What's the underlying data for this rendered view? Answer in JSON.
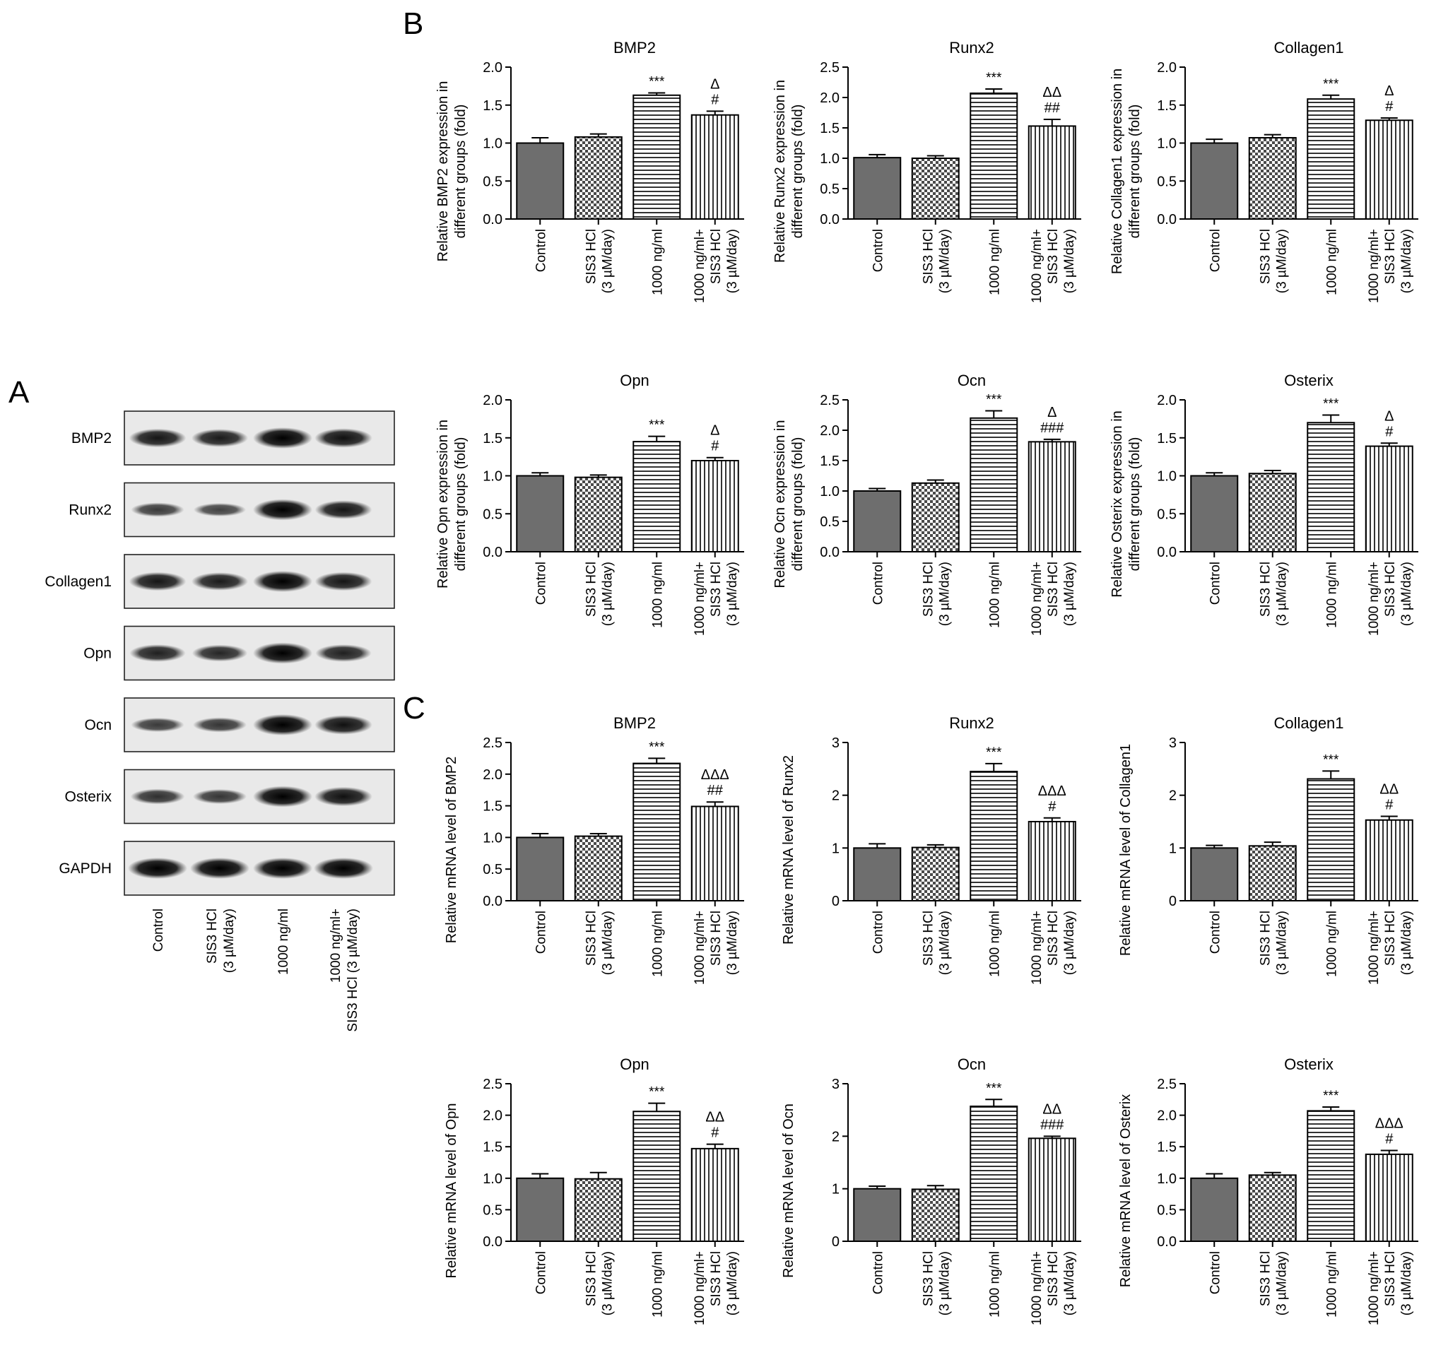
{
  "figure": {
    "panels": {
      "a": "A",
      "b": "B",
      "c": "C"
    },
    "categories": [
      "Control",
      "SIS3 HCl\n(3 µM/day)",
      "1000 ng/ml",
      "1000 ng/ml+\nSIS3 HCl\n(3 µM/day)"
    ],
    "western_blot": {
      "rows": [
        "BMP2",
        "Runx2",
        "Collagen1",
        "Opn",
        "Ocn",
        "Osterix",
        "GAPDH"
      ],
      "lanes": [
        "Control",
        "SIS3 HCl\n(3 µM/day)",
        "1000 ng/ml",
        "1000 ng/ml+\nSIS3 HCl (3 µM/day)"
      ],
      "band_intensity": [
        [
          0.8,
          0.75,
          1.0,
          0.85
        ],
        [
          0.45,
          0.38,
          1.0,
          0.8
        ],
        [
          0.8,
          0.75,
          1.0,
          0.8
        ],
        [
          0.7,
          0.65,
          1.0,
          0.7
        ],
        [
          0.45,
          0.5,
          1.0,
          0.85
        ],
        [
          0.55,
          0.5,
          1.0,
          0.85
        ],
        [
          1.0,
          1.0,
          1.0,
          1.0
        ]
      ]
    },
    "colors": {
      "bar_control": "#6e6e6e",
      "axis": "#000000"
    }
  },
  "chart_data": [
    {
      "type": "bar",
      "panel": "B",
      "title": "BMP2",
      "ylabel": "Relative BMP2 expression in\ndifferent groups (fold)",
      "ylim": [
        0,
        2.0
      ],
      "yticks": [
        "0.0",
        "0.5",
        "1.0",
        "1.5",
        "2.0"
      ],
      "categories": [
        "Control",
        "SIS3 HCl (3 µM/day)",
        "1000 ng/ml",
        "1000 ng/ml+ SIS3 HCl (3 µM/day)"
      ],
      "values": [
        1.0,
        1.08,
        1.63,
        1.37
      ],
      "errors": [
        0.07,
        0.04,
        0.03,
        0.05
      ],
      "annotations": [
        "",
        "",
        "***",
        "Δ\n#"
      ]
    },
    {
      "type": "bar",
      "panel": "B",
      "title": "Runx2",
      "ylabel": "Relative Runx2 expression in\ndifferent groups (fold)",
      "ylim": [
        0,
        2.5
      ],
      "yticks": [
        "0.0",
        "0.5",
        "1.0",
        "1.5",
        "2.0",
        "2.5"
      ],
      "categories": [
        "Control",
        "SIS3 HCl (3 µM/day)",
        "1000 ng/ml",
        "1000 ng/ml+ SIS3 HCl (3 µM/day)"
      ],
      "values": [
        1.01,
        1.0,
        2.07,
        1.53
      ],
      "errors": [
        0.05,
        0.04,
        0.07,
        0.11
      ],
      "annotations": [
        "",
        "",
        "***",
        "ΔΔ\n##"
      ]
    },
    {
      "type": "bar",
      "panel": "B",
      "title": "Collagen1",
      "ylabel": "Relative Collagen1 expression in\ndifferent groups (fold)",
      "ylim": [
        0,
        2.0
      ],
      "yticks": [
        "0.0",
        "0.5",
        "1.0",
        "1.5",
        "2.0"
      ],
      "categories": [
        "Control",
        "SIS3 HCl (3 µM/day)",
        "1000 ng/ml",
        "1000 ng/ml+ SIS3 HCl (3 µM/day)"
      ],
      "values": [
        1.0,
        1.07,
        1.58,
        1.3
      ],
      "errors": [
        0.05,
        0.04,
        0.05,
        0.03
      ],
      "annotations": [
        "",
        "",
        "***",
        "Δ\n#"
      ]
    },
    {
      "type": "bar",
      "panel": "B",
      "title": "Opn",
      "ylabel": "Relative Opn expression in\ndifferent groups (fold)",
      "ylim": [
        0,
        2.0
      ],
      "yticks": [
        "0.0",
        "0.5",
        "1.0",
        "1.5",
        "2.0"
      ],
      "categories": [
        "Control",
        "SIS3 HCl (3 µM/day)",
        "1000 ng/ml",
        "1000 ng/ml+ SIS3 HCl (3 µM/day)"
      ],
      "values": [
        1.0,
        0.98,
        1.45,
        1.2
      ],
      "errors": [
        0.04,
        0.03,
        0.07,
        0.04
      ],
      "annotations": [
        "",
        "",
        "***",
        "Δ\n#"
      ]
    },
    {
      "type": "bar",
      "panel": "B",
      "title": "Ocn",
      "ylabel": "Relative Ocn expression in\ndifferent groups (fold)",
      "ylim": [
        0,
        2.5
      ],
      "yticks": [
        "0.0",
        "0.5",
        "1.0",
        "1.5",
        "2.0",
        "2.5"
      ],
      "categories": [
        "Control",
        "SIS3 HCl (3 µM/day)",
        "1000 ng/ml",
        "1000 ng/ml+ SIS3 HCl (3 µM/day)"
      ],
      "values": [
        1.0,
        1.13,
        2.2,
        1.81
      ],
      "errors": [
        0.04,
        0.05,
        0.12,
        0.04
      ],
      "annotations": [
        "",
        "",
        "***",
        "Δ\n###"
      ]
    },
    {
      "type": "bar",
      "panel": "B",
      "title": "Osterix",
      "ylabel": "Relative Osterix expression in\ndifferent groups (fold)",
      "ylim": [
        0,
        2.0
      ],
      "yticks": [
        "0.0",
        "0.5",
        "1.0",
        "1.5",
        "2.0"
      ],
      "categories": [
        "Control",
        "SIS3 HCl (3 µM/day)",
        "1000 ng/ml",
        "1000 ng/ml+ SIS3 HCl (3 µM/day)"
      ],
      "values": [
        1.0,
        1.03,
        1.7,
        1.39
      ],
      "errors": [
        0.04,
        0.04,
        0.1,
        0.04
      ],
      "annotations": [
        "",
        "",
        "***",
        "Δ\n#"
      ]
    },
    {
      "type": "bar",
      "panel": "C",
      "title": "BMP2",
      "ylabel": "Relative mRNA level of BMP2",
      "ylim": [
        0,
        2.5
      ],
      "yticks": [
        "0.0",
        "0.5",
        "1.0",
        "1.5",
        "2.0",
        "2.5"
      ],
      "categories": [
        "Control",
        "SIS3 HCl (3 µM/day)",
        "1000 ng/ml",
        "1000 ng/ml+ SIS3 HCl (3 µM/day)"
      ],
      "values": [
        1.0,
        1.02,
        2.17,
        1.49
      ],
      "errors": [
        0.06,
        0.04,
        0.08,
        0.07
      ],
      "annotations": [
        "",
        "",
        "***",
        "ΔΔΔ\n##"
      ]
    },
    {
      "type": "bar",
      "panel": "C",
      "title": "Runx2",
      "ylabel": "Relative mRNA level of Runx2",
      "ylim": [
        0,
        3
      ],
      "yticks": [
        "0",
        "1",
        "2",
        "3"
      ],
      "categories": [
        "Control",
        "SIS3 HCl (3 µM/day)",
        "1000 ng/ml",
        "1000 ng/ml+ SIS3 HCl (3 µM/day)"
      ],
      "values": [
        1.0,
        1.01,
        2.45,
        1.5
      ],
      "errors": [
        0.08,
        0.05,
        0.15,
        0.07
      ],
      "annotations": [
        "",
        "",
        "***",
        "ΔΔΔ\n#"
      ]
    },
    {
      "type": "bar",
      "panel": "C",
      "title": "Collagen1",
      "ylabel": "Relative mRNA level of Collagen1",
      "ylim": [
        0,
        3
      ],
      "yticks": [
        "0",
        "1",
        "2",
        "3"
      ],
      "categories": [
        "Control",
        "SIS3 HCl (3 µM/day)",
        "1000 ng/ml",
        "1000 ng/ml+ SIS3 HCl (3 µM/day)"
      ],
      "values": [
        1.0,
        1.04,
        2.31,
        1.53
      ],
      "errors": [
        0.05,
        0.07,
        0.15,
        0.07
      ],
      "annotations": [
        "",
        "",
        "***",
        "ΔΔ\n#"
      ]
    },
    {
      "type": "bar",
      "panel": "C",
      "title": "Opn",
      "ylabel": "Relative mRNA level of Opn",
      "ylim": [
        0,
        2.5
      ],
      "yticks": [
        "0.0",
        "0.5",
        "1.0",
        "1.5",
        "2.0",
        "2.5"
      ],
      "categories": [
        "Control",
        "SIS3 HCl (3 µM/day)",
        "1000 ng/ml",
        "1000 ng/ml+ SIS3 HCl (3 µM/day)"
      ],
      "values": [
        1.0,
        0.99,
        2.06,
        1.47
      ],
      "errors": [
        0.07,
        0.1,
        0.13,
        0.07
      ],
      "annotations": [
        "",
        "",
        "***",
        "ΔΔ\n#"
      ]
    },
    {
      "type": "bar",
      "panel": "C",
      "title": "Ocn",
      "ylabel": "Relative mRNA level of Ocn",
      "ylim": [
        0,
        3
      ],
      "yticks": [
        "0",
        "1",
        "2",
        "3"
      ],
      "categories": [
        "Control",
        "SIS3 HCl (3 µM/day)",
        "1000 ng/ml",
        "1000 ng/ml+ SIS3 HCl (3 µM/day)"
      ],
      "values": [
        1.0,
        0.99,
        2.57,
        1.96
      ],
      "errors": [
        0.05,
        0.07,
        0.13,
        0.04
      ],
      "annotations": [
        "",
        "",
        "***",
        "ΔΔ\n###"
      ]
    },
    {
      "type": "bar",
      "panel": "C",
      "title": "Osterix",
      "ylabel": "Relative mRNA level of Osterix",
      "ylim": [
        0,
        2.5
      ],
      "yticks": [
        "0.0",
        "0.5",
        "1.0",
        "1.5",
        "2.0",
        "2.5"
      ],
      "categories": [
        "Control",
        "SIS3 HCl (3 µM/day)",
        "1000 ng/ml",
        "1000 ng/ml+ SIS3 HCl (3 µM/day)"
      ],
      "values": [
        1.0,
        1.05,
        2.07,
        1.38
      ],
      "errors": [
        0.07,
        0.04,
        0.06,
        0.06
      ],
      "annotations": [
        "",
        "",
        "***",
        "ΔΔΔ\n#"
      ]
    }
  ]
}
